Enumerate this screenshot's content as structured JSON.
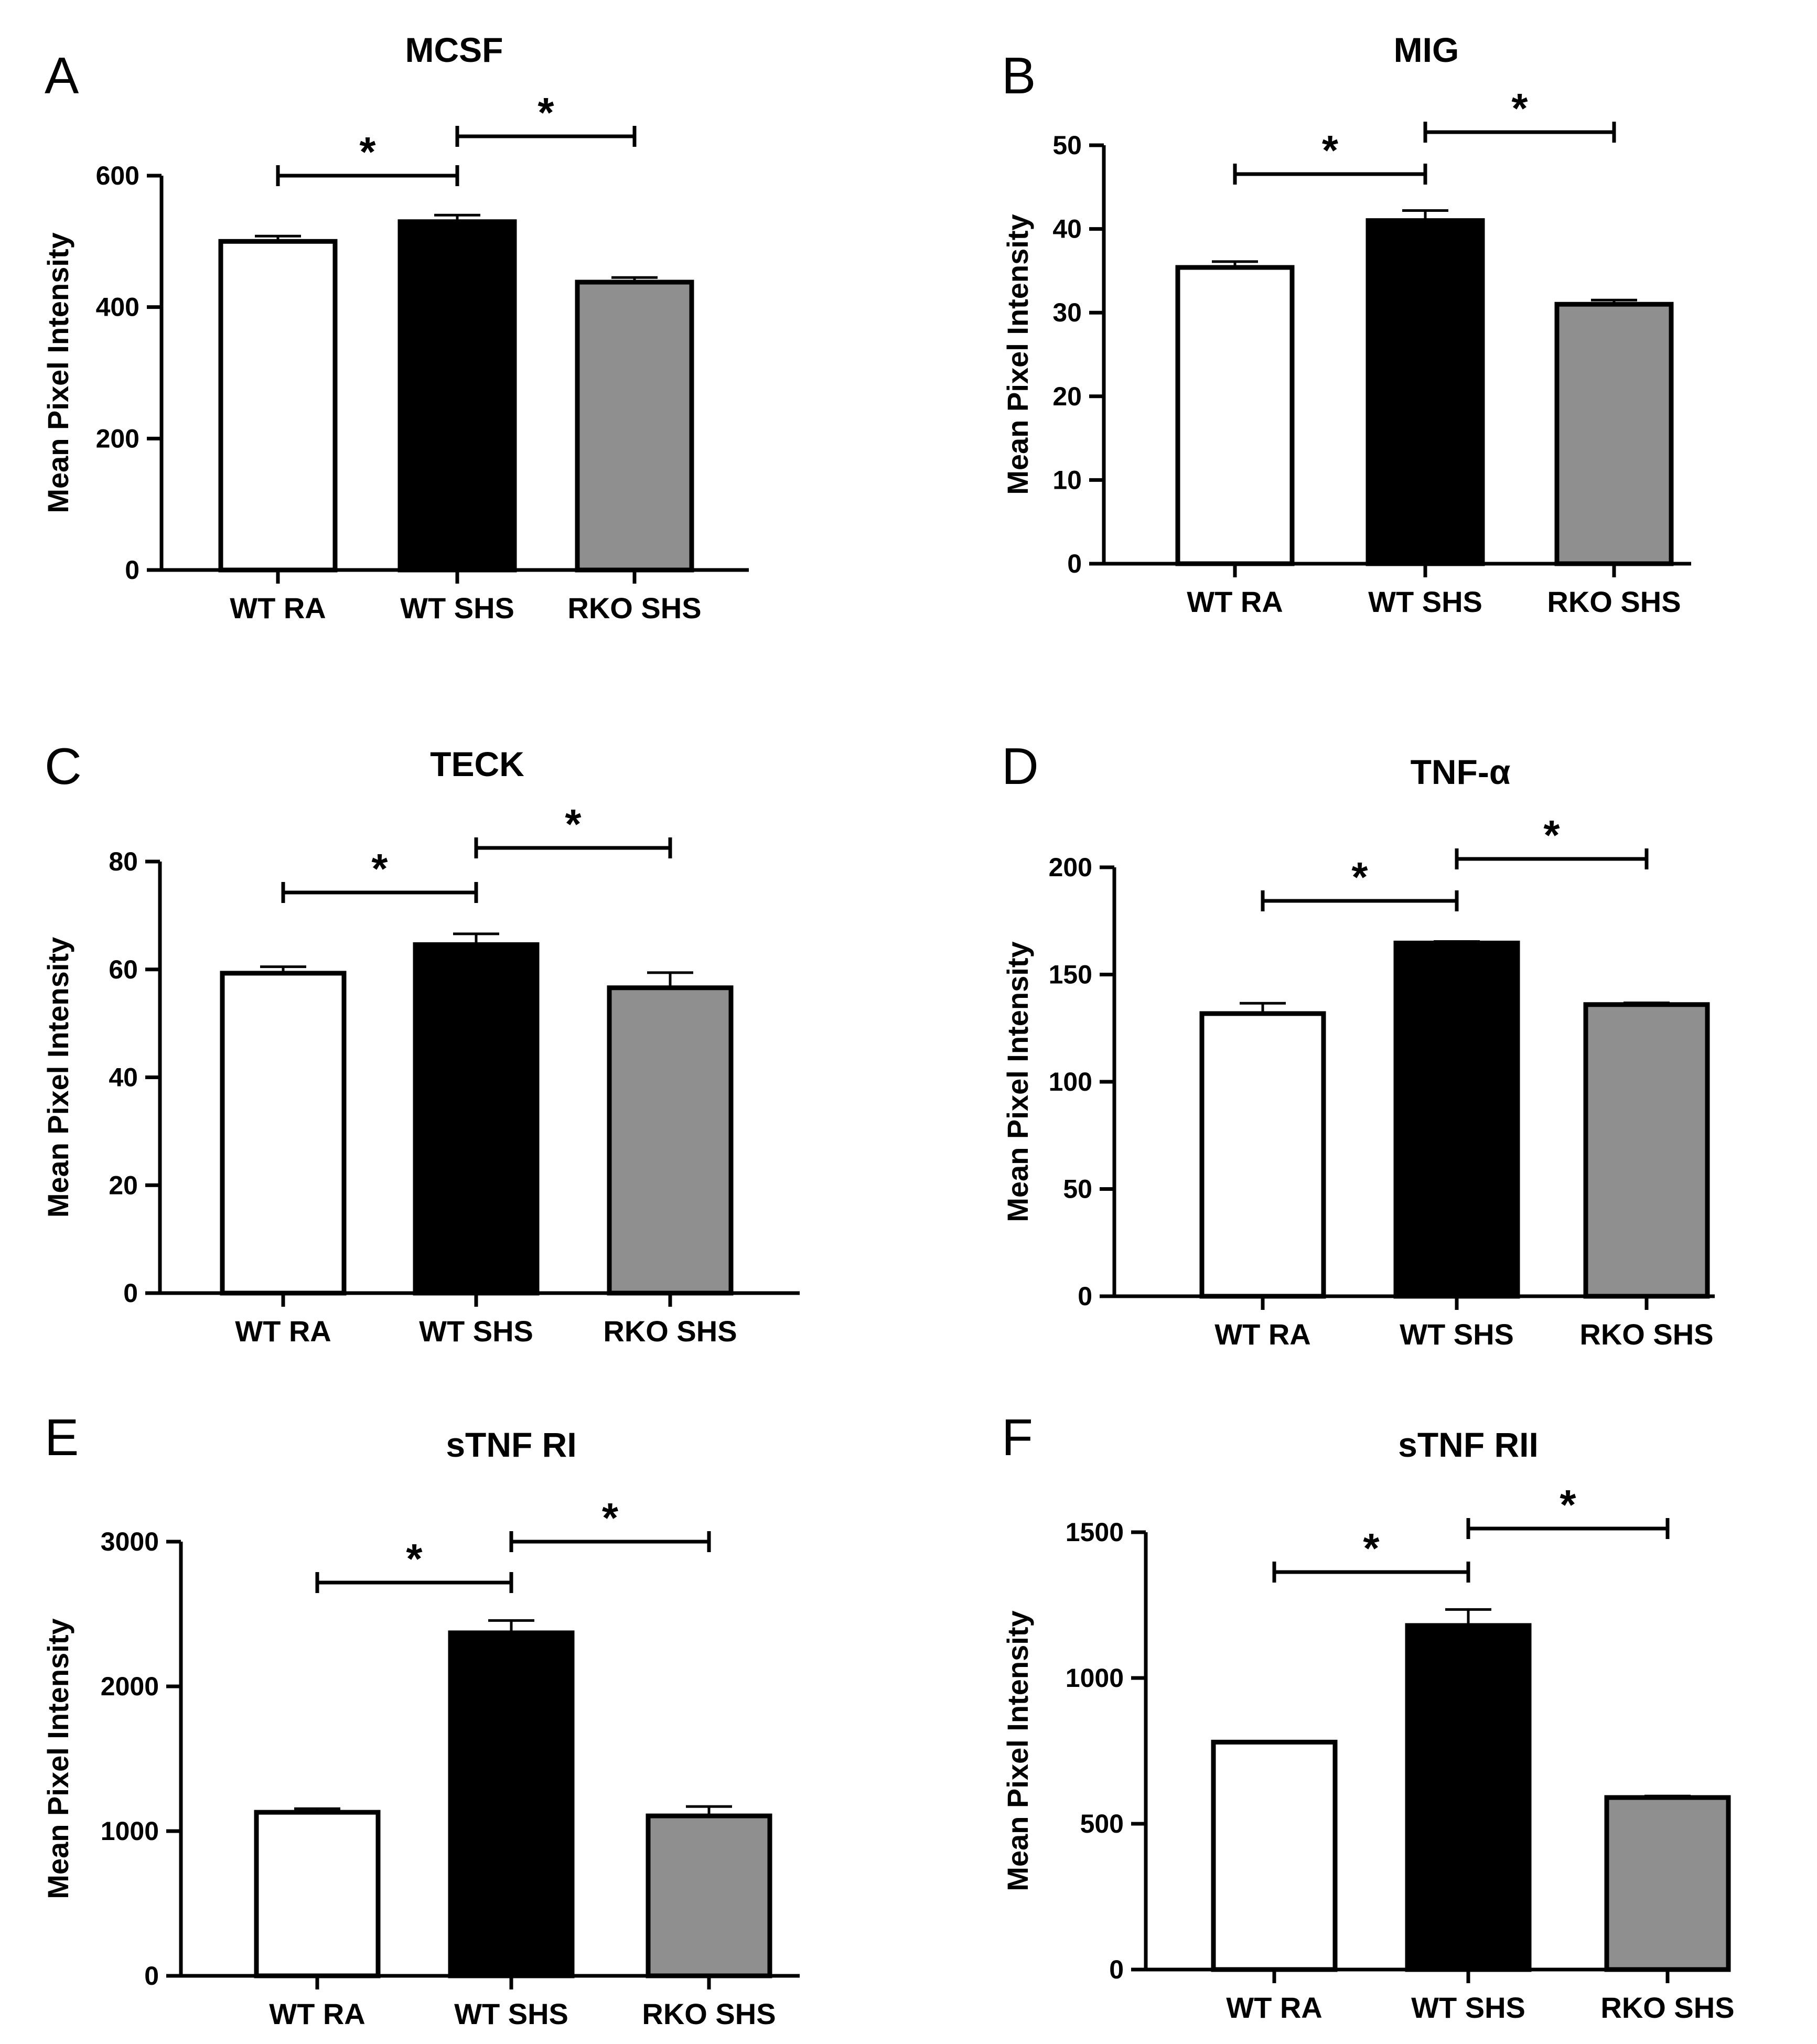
{
  "figure": {
    "panel_count": 6
  },
  "chart_data": [
    {
      "type": "bar",
      "panel": "A",
      "title": "MCSF",
      "ylabel": "Mean Pixel Intensity",
      "xlabel": "",
      "ylim": [
        0,
        600
      ],
      "yticks": [
        0,
        200,
        400,
        600
      ],
      "categories": [
        "WT RA",
        "WT SHS",
        "RKO SHS"
      ],
      "values": [
        500,
        530,
        438
      ],
      "errors": [
        8,
        10,
        7
      ],
      "bar_colors": [
        "#ffffff",
        "#000000",
        "#8f8f8f"
      ],
      "significance": [
        {
          "from": 0,
          "to": 1,
          "label": "*"
        },
        {
          "from": 1,
          "to": 2,
          "label": "*"
        }
      ]
    },
    {
      "type": "bar",
      "panel": "B",
      "title": "MIG",
      "ylabel": "Mean Pixel Intensity",
      "xlabel": "",
      "ylim": [
        0,
        50
      ],
      "yticks": [
        0,
        10,
        20,
        30,
        40,
        50
      ],
      "categories": [
        "WT RA",
        "WT SHS",
        "RKO SHS"
      ],
      "values": [
        35.4,
        41.0,
        31.0
      ],
      "errors": [
        0.7,
        1.2,
        0.5
      ],
      "bar_colors": [
        "#ffffff",
        "#000000",
        "#8f8f8f"
      ],
      "significance": [
        {
          "from": 0,
          "to": 1,
          "label": "*"
        },
        {
          "from": 1,
          "to": 2,
          "label": "*"
        }
      ]
    },
    {
      "type": "bar",
      "panel": "C",
      "title": "TECK",
      "ylabel": "Mean Pixel Intensity",
      "xlabel": "",
      "ylim": [
        0,
        80
      ],
      "yticks": [
        0,
        20,
        40,
        60,
        80
      ],
      "categories": [
        "WT RA",
        "WT SHS",
        "RKO SHS"
      ],
      "values": [
        59.3,
        64.6,
        56.6
      ],
      "errors": [
        1.2,
        2.0,
        2.8
      ],
      "bar_colors": [
        "#ffffff",
        "#000000",
        "#8f8f8f"
      ],
      "significance": [
        {
          "from": 0,
          "to": 1,
          "label": "*"
        },
        {
          "from": 1,
          "to": 2,
          "label": "*"
        }
      ]
    },
    {
      "type": "bar",
      "panel": "D",
      "title": "TNF-α",
      "ylabel": "Mean Pixel Intensity",
      "xlabel": "",
      "ylim": [
        0,
        200
      ],
      "yticks": [
        0,
        50,
        100,
        150,
        200
      ],
      "categories": [
        "WT RA",
        "WT SHS",
        "RKO SHS"
      ],
      "values": [
        131.8,
        164.7,
        136.0
      ],
      "errors": [
        4.8,
        0.7,
        0.8
      ],
      "bar_colors": [
        "#ffffff",
        "#000000",
        "#8f8f8f"
      ],
      "significance": [
        {
          "from": 0,
          "to": 1,
          "label": "*"
        },
        {
          "from": 1,
          "to": 2,
          "label": "*"
        }
      ]
    },
    {
      "type": "bar",
      "panel": "E",
      "title": "sTNF RI",
      "ylabel": "Mean Pixel Intensity",
      "xlabel": "",
      "ylim": [
        0,
        3000
      ],
      "yticks": [
        0,
        1000,
        2000,
        3000
      ],
      "categories": [
        "WT RA",
        "WT SHS",
        "RKO SHS"
      ],
      "values": [
        1130,
        2370,
        1105
      ],
      "errors": [
        25,
        85,
        65
      ],
      "bar_colors": [
        "#ffffff",
        "#000000",
        "#8f8f8f"
      ],
      "significance": [
        {
          "from": 0,
          "to": 1,
          "label": "*"
        },
        {
          "from": 1,
          "to": 2,
          "label": "*"
        }
      ]
    },
    {
      "type": "bar",
      "panel": "F",
      "title": "sTNF RII",
      "ylabel": "Mean Pixel Intensity",
      "xlabel": "",
      "ylim": [
        0,
        1500
      ],
      "yticks": [
        0,
        500,
        1000,
        1500
      ],
      "categories": [
        "WT RA",
        "WT SHS",
        "RKO SHS"
      ],
      "values": [
        780,
        1180,
        590
      ],
      "errors": [
        3,
        55,
        5
      ],
      "bar_colors": [
        "#ffffff",
        "#000000",
        "#8f8f8f"
      ],
      "significance": [
        {
          "from": 0,
          "to": 1,
          "label": "*"
        },
        {
          "from": 1,
          "to": 2,
          "label": "*"
        }
      ]
    }
  ]
}
